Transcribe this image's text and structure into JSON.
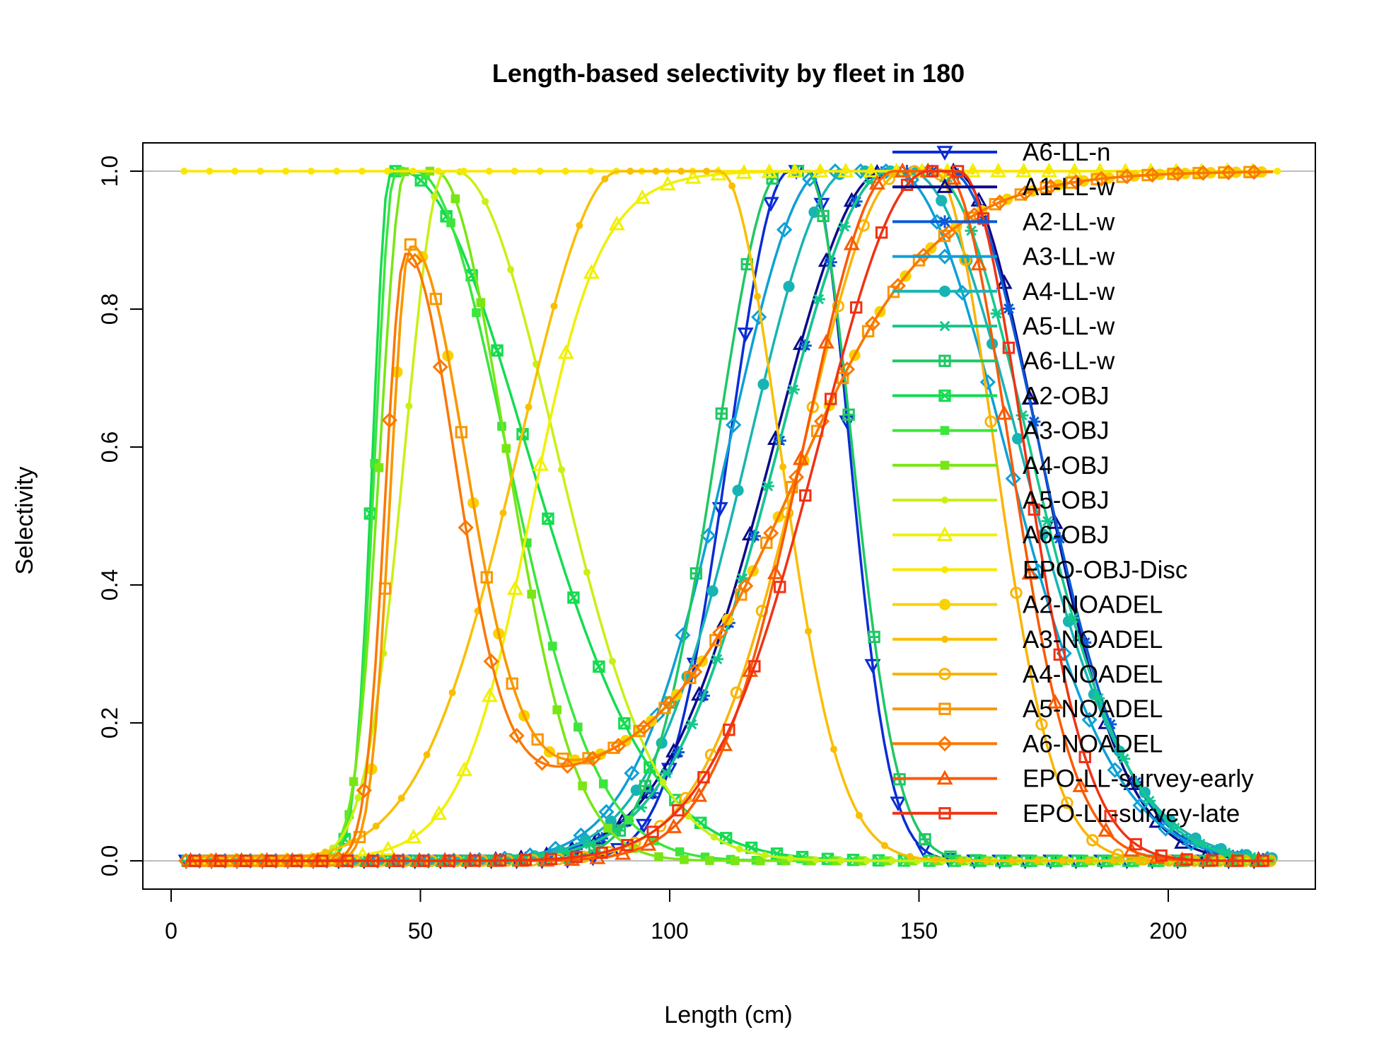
{
  "chart_data": {
    "type": "line",
    "title": "Length-based selectivity by fleet in 180",
    "xlabel": "Length (cm)",
    "ylabel": "Selectivity",
    "xlim": [
      0,
      230
    ],
    "ylim": [
      0,
      1.0
    ],
    "xticks": [
      "0",
      "50",
      "100",
      "150",
      "200"
    ],
    "yticks": [
      "0.0",
      "0.2",
      "0.4",
      "0.6",
      "0.8",
      "1.0"
    ],
    "reference_lines": [
      0,
      1
    ],
    "legend_position": "top-right",
    "series": [
      {
        "name": "A6-LL-n",
        "color": "#0a2cd6",
        "marker": "triangle-down",
        "model": "dome",
        "params": {
          "peak": 126,
          "wl": 12,
          "pw": 4,
          "wr": 8
        }
      },
      {
        "name": "A1-LL-w",
        "color": "#0a0a8c",
        "marker": "triangle-up",
        "model": "dome",
        "params": {
          "peak": 150,
          "wl": 22,
          "pw": 14,
          "wr": 17
        }
      },
      {
        "name": "A2-LL-w",
        "color": "#0a5ad6",
        "marker": "asterisk",
        "model": "dome",
        "params": {
          "peak": 150,
          "wl": 22,
          "pw": 12,
          "wr": 18
        }
      },
      {
        "name": "A3-LL-w",
        "color": "#0ea0d6",
        "marker": "diamond",
        "model": "dome",
        "params": {
          "peak": 138,
          "wl": 19,
          "pw": 14,
          "wr": 22
        }
      },
      {
        "name": "A4-LL-w",
        "color": "#18b4b4",
        "marker": "circle-filled",
        "model": "dome",
        "params": {
          "peak": 142,
          "wl": 20,
          "pw": 12,
          "wr": 22
        }
      },
      {
        "name": "A5-LL-w",
        "color": "#14c88c",
        "marker": "star",
        "model": "dome",
        "params": {
          "peak": 148,
          "wl": 22,
          "pw": 8,
          "wr": 20
        }
      },
      {
        "name": "A6-LL-w",
        "color": "#1ec864",
        "marker": "square-plus",
        "model": "dome",
        "params": {
          "peak": 125,
          "wl": 13,
          "pw": 5,
          "wr": 9
        }
      },
      {
        "name": "A2-OBJ",
        "color": "#14dc50",
        "marker": "square-x",
        "model": "dome",
        "params": {
          "peak": 45,
          "wl": 3.5,
          "pw": 2,
          "wr": 25
        }
      },
      {
        "name": "A3-OBJ",
        "color": "#3ce63c",
        "marker": "square-filled",
        "model": "dome",
        "params": {
          "peak": 47,
          "wl": 4,
          "pw": 4,
          "wr": 18
        }
      },
      {
        "name": "A4-OBJ",
        "color": "#78e614",
        "marker": "square-filled",
        "model": "dome",
        "params": {
          "peak": 50,
          "wl": 5,
          "pw": 6,
          "wr": 14
        }
      },
      {
        "name": "A5-OBJ",
        "color": "#c8f014",
        "marker": "dot",
        "model": "dome",
        "params": {
          "peak": 56,
          "wl": 8,
          "pw": 2,
          "wr": 20
        }
      },
      {
        "name": "A6-OBJ",
        "color": "#f0f000",
        "marker": "triangle-up",
        "model": "sigmoid",
        "params": {
          "x50": 72,
          "s": 7
        }
      },
      {
        "name": "EPO-OBJ-Disc",
        "color": "#fae600",
        "marker": "dot",
        "model": "flat",
        "params": {
          "v": 1
        }
      },
      {
        "name": "A2-NOADEL",
        "color": "#fad200",
        "marker": "circle-filled",
        "model": "u",
        "params": {
          "peak": 48,
          "wl": 4,
          "wr": 11,
          "floor": 0.1,
          "c2": 125,
          "a2": 14,
          "top": 0.89
        }
      },
      {
        "name": "A3-NOADEL",
        "color": "#fabe00",
        "marker": "dot",
        "model": "dome",
        "params": {
          "peak": 100,
          "wl": 20,
          "pw": 20,
          "wr": 12
        }
      },
      {
        "name": "A4-NOADEL",
        "color": "#fab400",
        "marker": "circle-open",
        "model": "dome",
        "params": {
          "peak": 150,
          "wl": 20,
          "pw": 6,
          "wr": 12
        }
      },
      {
        "name": "A5-NOADEL",
        "color": "#fa9600",
        "marker": "square-open",
        "model": "u",
        "params": {
          "peak": 48,
          "wl": 4,
          "wr": 11,
          "floor": 0.1,
          "c2": 125,
          "a2": 14,
          "top": 0.89
        }
      },
      {
        "name": "A6-NOADEL",
        "color": "#fa7800",
        "marker": "diamond",
        "model": "u",
        "params": {
          "peak": 47,
          "wl": 4,
          "wr": 10,
          "floor": 0.1,
          "c2": 125,
          "a2": 14,
          "top": 0.88
        }
      },
      {
        "name": "EPO-LL-survey-early",
        "color": "#fa5a00",
        "marker": "triangle-up",
        "model": "dome",
        "params": {
          "peak": 150,
          "wl": 18,
          "pw": 10,
          "wr": 13
        }
      },
      {
        "name": "EPO-LL-survey-late",
        "color": "#f03214",
        "marker": "square-open",
        "model": "dome",
        "params": {
          "peak": 155,
          "wl": 22,
          "pw": 6,
          "wr": 13
        }
      }
    ]
  }
}
